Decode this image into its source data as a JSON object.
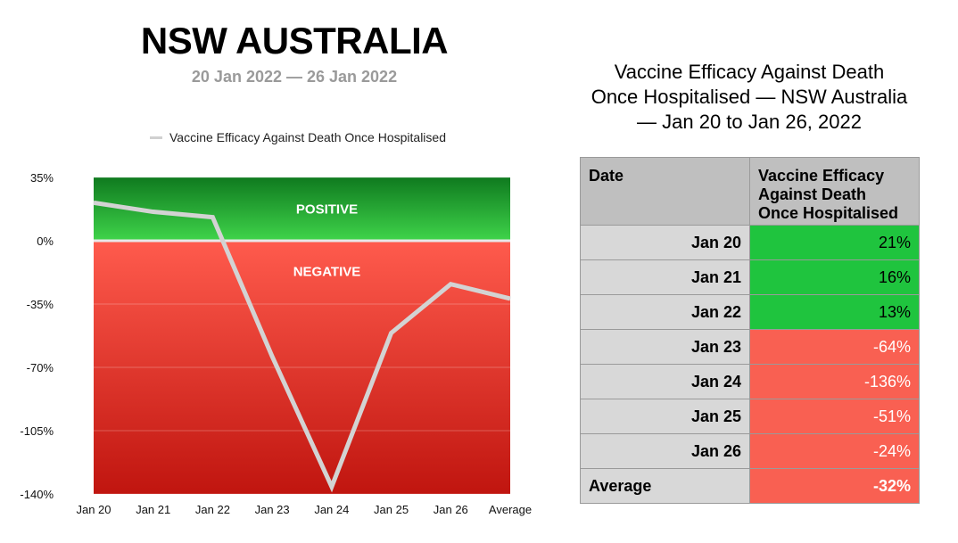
{
  "header": {
    "title": "NSW AUSTRALIA",
    "subtitle": "20 Jan 2022 — 26 Jan 2022"
  },
  "colors": {
    "positive_top": "#0f7a1f",
    "positive_bottom": "#3fd44a",
    "negative_top": "#ff5b4d",
    "negative_bottom": "#c0150f",
    "line": "#d3d3d3",
    "cell_positive": "#1fc43e",
    "cell_negative": "#f96052"
  },
  "chart_data": {
    "type": "line",
    "title": "",
    "xlabel": "",
    "ylabel": "",
    "categories": [
      "Jan 20",
      "Jan 21",
      "Jan 22",
      "Jan 23",
      "Jan 24",
      "Jan 25",
      "Jan 26",
      "Average"
    ],
    "series": [
      {
        "name": "Vaccine Efficacy Against Death Once Hospitalised",
        "values": [
          21,
          16,
          13,
          -64,
          -136,
          -51,
          -24,
          -32
        ]
      }
    ],
    "ylim": [
      -140,
      35
    ],
    "yticks": [
      35,
      0,
      -35,
      -70,
      -105,
      -140
    ],
    "ytick_labels": [
      "35%",
      "0%",
      "-35%",
      "-70%",
      "-105%",
      "-140%"
    ],
    "regions": [
      {
        "label": "POSITIVE",
        "from": 0,
        "to": 35
      },
      {
        "label": "NEGATIVE",
        "from": -140,
        "to": 0
      }
    ],
    "grid": true,
    "legend": "top"
  },
  "table": {
    "title_lines": [
      "Vaccine Efficacy Against Death",
      "Once Hospitalised — NSW Australia",
      "— Jan 20 to Jan 26, 2022"
    ],
    "headers": [
      "Date",
      "Vaccine Efficacy Against Death Once Hospitalised"
    ],
    "rows": [
      {
        "date": "Jan 20",
        "value": "21%",
        "sign": "pos"
      },
      {
        "date": "Jan 21",
        "value": "16%",
        "sign": "pos"
      },
      {
        "date": "Jan 22",
        "value": "13%",
        "sign": "pos"
      },
      {
        "date": "Jan 23",
        "value": "-64%",
        "sign": "neg"
      },
      {
        "date": "Jan 24",
        "value": "-136%",
        "sign": "neg"
      },
      {
        "date": "Jan 25",
        "value": "-51%",
        "sign": "neg"
      },
      {
        "date": "Jan 26",
        "value": "-24%",
        "sign": "neg"
      }
    ],
    "average": {
      "label": "Average",
      "value": "-32%",
      "sign": "neg"
    }
  }
}
